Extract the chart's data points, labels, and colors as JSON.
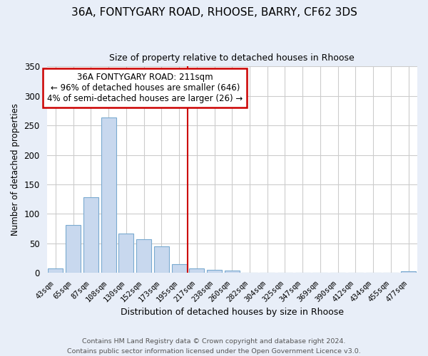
{
  "title": "36A, FONTYGARY ROAD, RHOOSE, BARRY, CF62 3DS",
  "subtitle": "Size of property relative to detached houses in Rhoose",
  "xlabel": "Distribution of detached houses by size in Rhoose",
  "ylabel": "Number of detached properties",
  "bar_labels": [
    "43sqm",
    "65sqm",
    "87sqm",
    "108sqm",
    "130sqm",
    "152sqm",
    "173sqm",
    "195sqm",
    "217sqm",
    "238sqm",
    "260sqm",
    "282sqm",
    "304sqm",
    "325sqm",
    "347sqm",
    "369sqm",
    "390sqm",
    "412sqm",
    "434sqm",
    "455sqm",
    "477sqm"
  ],
  "bar_heights": [
    7,
    81,
    128,
    263,
    67,
    57,
    45,
    15,
    7,
    5,
    4,
    0,
    0,
    0,
    0,
    0,
    0,
    0,
    0,
    0,
    2
  ],
  "bar_color": "#c8d8ee",
  "bar_edge_color": "#7aaad0",
  "vline_color": "#cc0000",
  "annotation_title": "36A FONTYGARY ROAD: 211sqm",
  "annotation_line1": "← 96% of detached houses are smaller (646)",
  "annotation_line2": "4% of semi-detached houses are larger (26) →",
  "annotation_box_color": "#ffffff",
  "annotation_border_color": "#cc0000",
  "ylim": [
    0,
    350
  ],
  "yticks": [
    0,
    50,
    100,
    150,
    200,
    250,
    300,
    350
  ],
  "footer1": "Contains HM Land Registry data © Crown copyright and database right 2024.",
  "footer2": "Contains public sector information licensed under the Open Government Licence v3.0.",
  "fig_bg_color": "#e8eef8",
  "plot_bg_color": "#ffffff"
}
